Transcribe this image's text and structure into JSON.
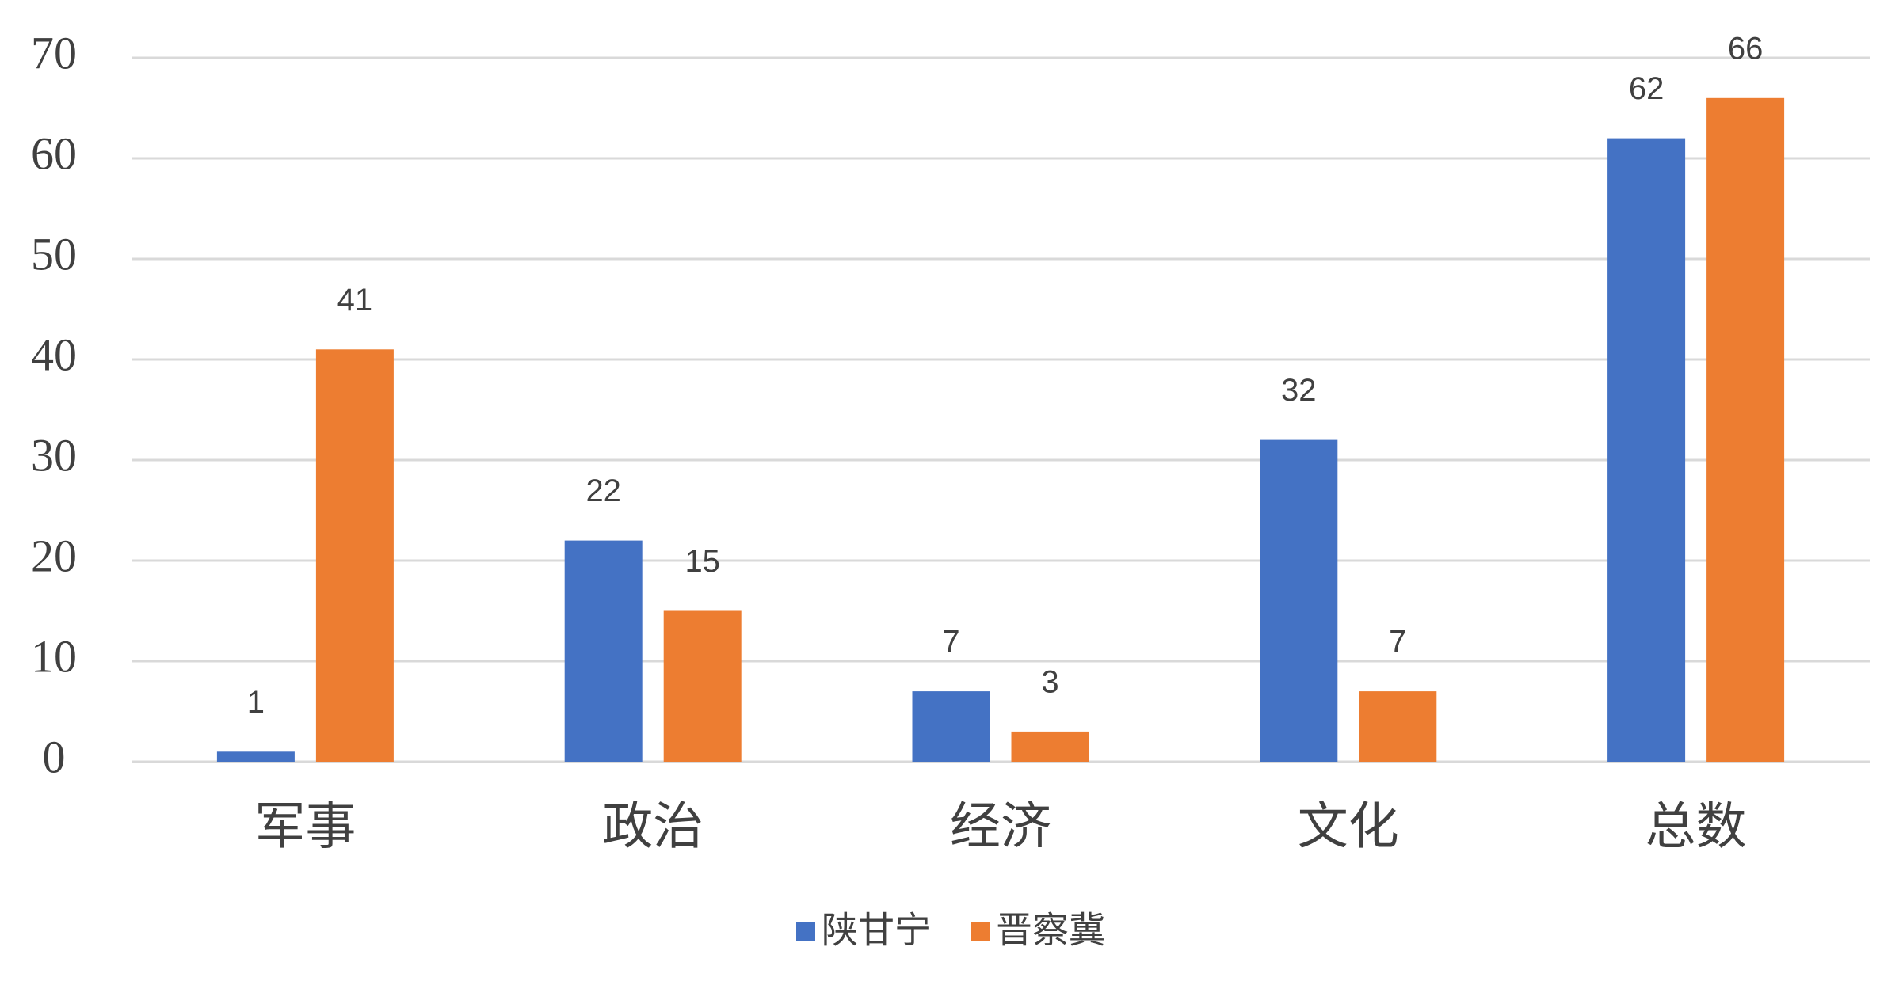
{
  "chart_data": {
    "type": "bar",
    "categories": [
      "军事",
      "政治",
      "经济",
      "文化",
      "总数"
    ],
    "series": [
      {
        "name": "陕甘宁",
        "color": "#4472c4",
        "values": [
          1,
          22,
          7,
          32,
          62
        ]
      },
      {
        "name": "晋察冀",
        "color": "#ed7d31",
        "values": [
          41,
          15,
          3,
          7,
          66
        ]
      }
    ],
    "ylim": [
      0,
      70
    ],
    "yticks": [
      0,
      10,
      20,
      30,
      40,
      50,
      60,
      70
    ],
    "grid": true,
    "legend": "bottom"
  }
}
